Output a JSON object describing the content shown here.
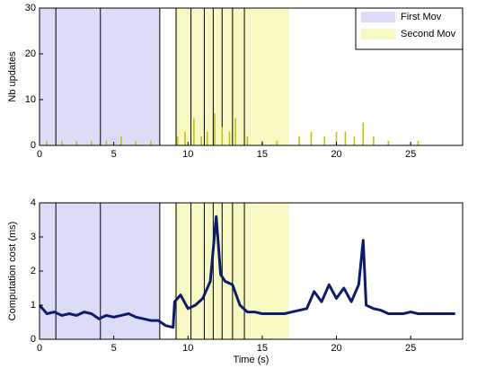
{
  "chart_data": [
    {
      "type": "bar",
      "ylabel": "Nb updates",
      "color": "#c4c400",
      "x": [
        0.5,
        1.5,
        2.5,
        3.5,
        4.5,
        5.5,
        6.5,
        7.5,
        9.3,
        9.8,
        10.4,
        10.9,
        11.3,
        11.8,
        12.3,
        12.8,
        13.2,
        14,
        15,
        16,
        17.5,
        18.3,
        19.2,
        20,
        20.6,
        21.2,
        21.8,
        22.5,
        23.5,
        25.5
      ],
      "values": [
        1,
        1,
        1,
        1,
        1,
        2,
        1,
        1,
        2,
        3,
        6,
        2,
        3,
        7,
        4,
        3,
        6,
        2,
        1,
        1,
        2,
        3,
        2,
        3,
        3,
        2,
        5,
        2,
        1,
        1
      ],
      "xlim": [
        0,
        28.5
      ],
      "xticks": [
        0,
        5,
        10,
        15,
        20,
        25
      ],
      "ylim": [
        0,
        30
      ],
      "yticks": [
        0,
        10,
        20,
        30
      ],
      "regions": [
        {
          "name": "First Mov",
          "color": "#dcdcf8",
          "span": [
            0,
            8.1
          ]
        },
        {
          "name": "Second Mov",
          "color": "#f8f8c4",
          "span": [
            9.1,
            16.8
          ]
        }
      ],
      "vlines": [
        1.1,
        4.1,
        8.1,
        9.2,
        10.2,
        11.1,
        11.7,
        12.3,
        13.0,
        13.8
      ],
      "legend": "top-right"
    },
    {
      "type": "line",
      "ylabel": "Computation cost (ms)",
      "xlabel": "Time (s)",
      "color": "#0d1b6b",
      "x": [
        0,
        0.5,
        1,
        1.5,
        2,
        2.5,
        3,
        3.5,
        4,
        4.5,
        5,
        5.5,
        6,
        6.5,
        7,
        7.5,
        8,
        8.5,
        9,
        9.1,
        9.5,
        10,
        10.5,
        11,
        11.5,
        11.9,
        12.2,
        12.5,
        13,
        13.5,
        14,
        14.5,
        15,
        15.5,
        16,
        16.5,
        17,
        17.5,
        18,
        18.5,
        19,
        19.5,
        20,
        20.5,
        21,
        21.5,
        21.8,
        22,
        22.5,
        23,
        23.5,
        24,
        24.5,
        25,
        25.5,
        26,
        26.5,
        27,
        27.5,
        28
      ],
      "values": [
        1.0,
        0.75,
        0.8,
        0.7,
        0.75,
        0.7,
        0.8,
        0.75,
        0.6,
        0.7,
        0.65,
        0.7,
        0.75,
        0.65,
        0.6,
        0.55,
        0.55,
        0.4,
        0.35,
        1.1,
        1.3,
        0.9,
        1.0,
        1.2,
        1.7,
        3.6,
        1.9,
        1.7,
        1.6,
        1.0,
        0.8,
        0.8,
        0.75,
        0.75,
        0.75,
        0.75,
        0.8,
        0.85,
        0.9,
        1.4,
        1.1,
        1.6,
        1.2,
        1.5,
        1.1,
        1.6,
        2.9,
        1.0,
        0.9,
        0.85,
        0.75,
        0.75,
        0.75,
        0.8,
        0.75,
        0.75,
        0.75,
        0.75,
        0.75,
        0.75
      ],
      "xlim": [
        0,
        28.5
      ],
      "xticks": [
        0,
        5,
        10,
        15,
        20,
        25
      ],
      "ylim": [
        0,
        4
      ],
      "yticks": [
        0,
        1,
        2,
        3,
        4
      ],
      "regions": [
        {
          "color": "#dcdcf8",
          "span": [
            0,
            8.1
          ]
        },
        {
          "color": "#f8f8c4",
          "span": [
            9.1,
            16.8
          ]
        }
      ],
      "vlines": [
        1.1,
        4.1,
        8.1,
        9.2,
        10.2,
        11.1,
        11.7,
        12.3,
        13.0,
        13.8
      ]
    }
  ]
}
